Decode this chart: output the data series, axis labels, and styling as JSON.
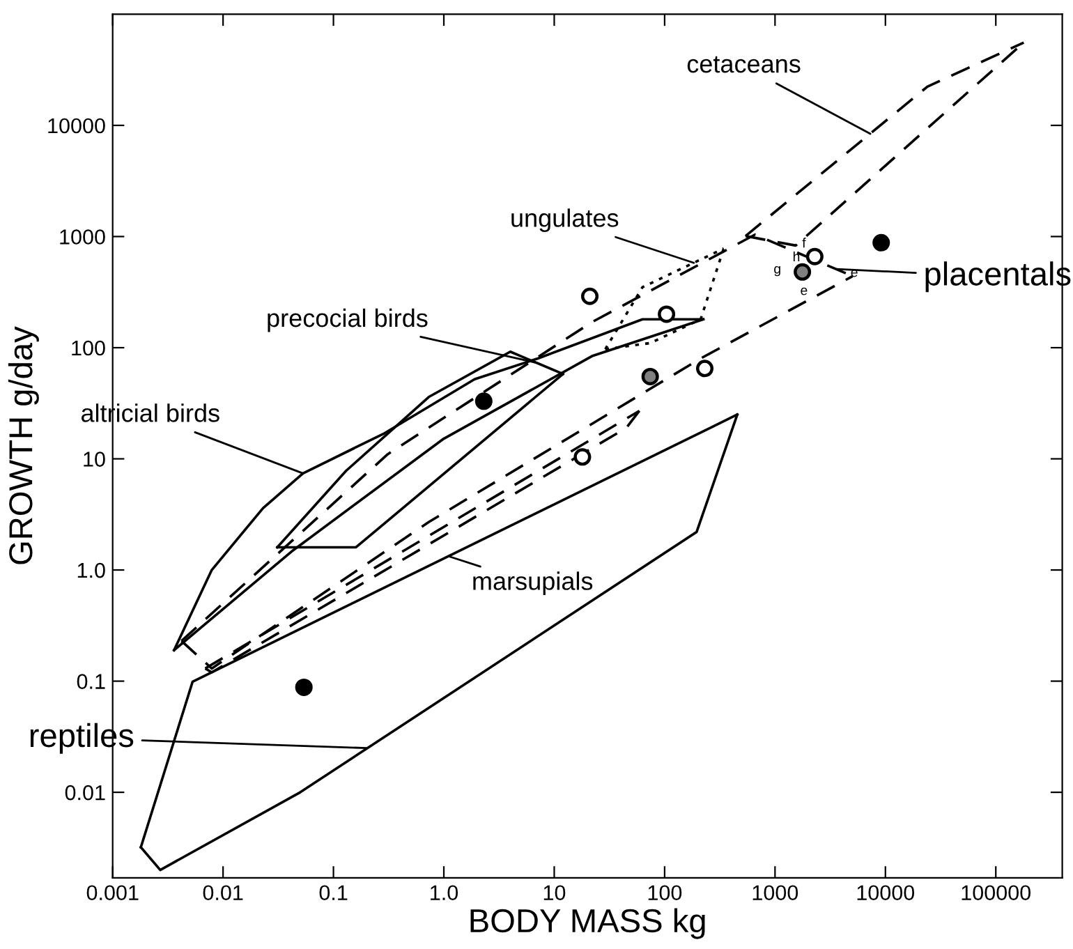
{
  "chart_data": {
    "type": "line",
    "xlabel": "BODY MASS kg",
    "ylabel": "GROWTH g/day",
    "log": "xy",
    "grid": false,
    "legend": false,
    "xlim": [
      0.001,
      400000
    ],
    "ylim": [
      0.0017,
      100000
    ],
    "xticks": [
      0.001,
      0.01,
      0.1,
      {
        "value": 1,
        "label": "1.0"
      },
      10,
      100,
      1000,
      10000,
      100000
    ],
    "yticks": [
      0.01,
      0.1,
      {
        "value": 1,
        "label": "1.0"
      },
      10,
      100,
      1000,
      10000
    ],
    "series": [
      {
        "color": "#000000",
        "line_style": "solid",
        "x": [
          0.0018,
          0.0027,
          0.05,
          195,
          455
        ],
        "values": [
          0.0032,
          0.002,
          0.01,
          2.2,
          25
        ]
      },
      {
        "color": "#000000",
        "line_style": "solid",
        "x": [
          0.0018,
          0.0053,
          455
        ],
        "values": [
          0.0032,
          0.099,
          25
        ]
      },
      {
        "color": "#000000",
        "line_style": "solid",
        "x": [
          0.0036,
          0.0079,
          0.023,
          0.053,
          0.29,
          1.9,
          7.1,
          63,
          224
        ],
        "values": [
          0.19,
          1.0,
          3.6,
          7.4,
          17,
          52,
          80,
          180,
          180
        ]
      },
      {
        "color": "#000000",
        "line_style": "solid",
        "x": [
          0.0036,
          0.043,
          0.98,
          22,
          224
        ],
        "values": [
          0.19,
          1.5,
          15,
          84,
          180
        ]
      },
      {
        "color": "#000000",
        "line_style": "solid",
        "x": [
          0.031,
          0.13,
          0.73,
          4,
          12
        ],
        "values": [
          1.6,
          7.8,
          36,
          92,
          58
        ]
      },
      {
        "color": "#000000",
        "line_style": "solid",
        "x": [
          0.031,
          0.16,
          12
        ],
        "values": [
          1.6,
          1.6,
          58
        ]
      },
      {
        "color": "#000000",
        "line_style": "dashed",
        "x": [
          0.0042,
          0.31,
          22,
          658,
          5050
        ],
        "values": [
          0.23,
          11,
          170,
          1040,
          440
        ]
      },
      {
        "color": "#000000",
        "line_style": "dashed",
        "x": [
          0.0042,
          0.0079,
          0.73,
          212,
          5050
        ],
        "values": [
          0.23,
          0.13,
          2.7,
          80,
          440
        ]
      },
      {
        "color": "#000000",
        "line_style": "dashed",
        "x": [
          540,
          24000,
          179000
        ],
        "values": [
          1010,
          22300,
          55600
        ]
      },
      {
        "color": "#000000",
        "line_style": "dashed",
        "x": [
          540,
          1540,
          179000
        ],
        "values": [
          1010,
          830,
          55600
        ]
      },
      {
        "color": "#000000",
        "line_style": "dotted",
        "x": [
          29,
          63,
          343
        ],
        "values": [
          97,
          350,
          780
        ]
      },
      {
        "color": "#000000",
        "line_style": "dotted",
        "x": [
          29,
          74,
          212,
          343
        ],
        "values": [
          97,
          110,
          180,
          780
        ]
      },
      {
        "color": "#000000",
        "line_style": "dashed",
        "x": [
          0.0069,
          59
        ],
        "values": [
          0.13,
          27
        ]
      },
      {
        "color": "#000000",
        "line_style": "dashed",
        "x": [
          0.0069,
          0.0079,
          45,
          59
        ],
        "values": [
          0.13,
          0.12,
          19,
          27
        ]
      },
      {
        "type": "scatter",
        "marker": "circle",
        "x": [
          9160,
          1770,
          2290,
          21,
          104,
          74,
          231,
          2.3,
          18,
          0.054
        ],
        "values": [
          880,
          480,
          660,
          290,
          200,
          55,
          65,
          33,
          10.4,
          0.088
        ],
        "colors": [
          "#000000",
          "#808080",
          "#ffffff",
          "#ffffff",
          "#ffffff",
          "#808080",
          "#ffffff",
          "#000000",
          "#ffffff",
          "#000000"
        ]
      }
    ],
    "annotations": [
      {
        "text": "cetaceans",
        "x": 7300,
        "y": 8400
      },
      {
        "text": "ungulates",
        "x": 184,
        "y": 580
      },
      {
        "text": "precocial birds",
        "x": 7,
        "y": 73
      },
      {
        "text": "altricial birds",
        "x": 0.053,
        "y": 7.4
      },
      {
        "text": "placentals",
        "x": 3600,
        "y": 510
      },
      {
        "text": "marsupials",
        "x": 1.1,
        "y": 1.33
      },
      {
        "text": "reptiles",
        "x": 0.2,
        "y": 0.025
      },
      "e",
      "e",
      "f",
      "g",
      "h"
    ]
  }
}
